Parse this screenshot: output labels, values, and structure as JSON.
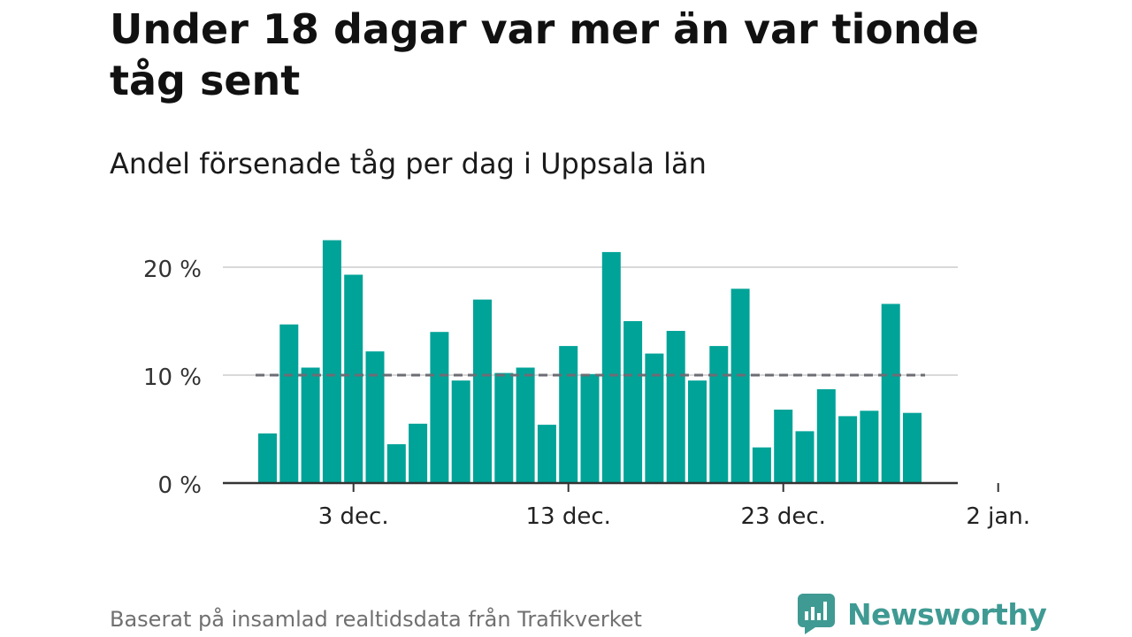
{
  "title": "Under 18 dagar var mer än var tionde tåg sent",
  "subtitle": "Andel försenade tåg per dag i Uppsala län",
  "footer": "Baserat på insamlad realtidsdata från Trafikverket",
  "brand": {
    "name": "Newsworthy",
    "icon": "newsworthy-logo-icon",
    "color": "#3f9a93"
  },
  "colors": {
    "bar": "#00a398",
    "reference": "#6d6d75",
    "grid": "#d9d9d9",
    "axis": "#333333"
  },
  "chart_data": {
    "type": "bar",
    "title": "Under 18 dagar var mer än var tionde tåg sent",
    "subtitle": "Andel försenade tåg per dag i Uppsala län",
    "x_unit": "date",
    "x_start": "2023-11-29",
    "x_ticks": [
      {
        "label": "3 dec.",
        "value": "2023-12-03"
      },
      {
        "label": "13 dec.",
        "value": "2023-12-13"
      },
      {
        "label": "23 dec.",
        "value": "2023-12-23"
      },
      {
        "label": "2 jan.",
        "value": "2024-01-02"
      }
    ],
    "y_ticks": [
      {
        "label": "0 %",
        "value": 0
      },
      {
        "label": "10 %",
        "value": 10
      },
      {
        "label": "20 %",
        "value": 20
      }
    ],
    "ylim": [
      0,
      24
    ],
    "grid": true,
    "reference_line": {
      "value": 10,
      "style": "dashed"
    },
    "values": [
      4.6,
      14.7,
      10.7,
      22.5,
      19.3,
      12.2,
      3.6,
      5.5,
      14.0,
      9.5,
      17.0,
      10.2,
      10.7,
      5.4,
      12.7,
      10.1,
      21.4,
      15.0,
      12.0,
      14.1,
      9.5,
      12.7,
      18.0,
      3.3,
      6.8,
      4.8,
      8.7,
      6.2,
      6.7,
      16.6,
      6.5
    ]
  }
}
